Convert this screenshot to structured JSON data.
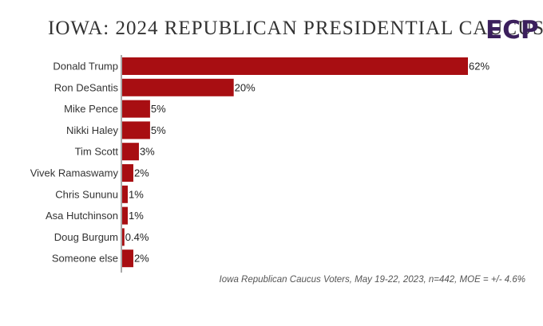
{
  "title": "IOWA: 2024 REPUBLICAN PRESIDENTIAL CAUCUS",
  "logo": {
    "text": "ECP",
    "icon": "ecp-logo-icon",
    "color": "#3b1f5c",
    "accent": "#7a4fa8"
  },
  "note": "Iowa Republican Caucus Voters, May 19-22, 2023, n=442, MOE = +/- 4.6%",
  "colors": {
    "bar": "#a80e12",
    "axis": "#555555",
    "label": "#333333"
  },
  "chart_data": {
    "type": "bar",
    "orientation": "horizontal",
    "categories": [
      "Donald Trump",
      "Ron DeSantis",
      "Mike Pence",
      "Nikki Haley",
      "Tim Scott",
      "Vivek Ramaswamy",
      "Chris Sununu",
      "Asa Hutchinson",
      "Doug Burgum",
      "Someone else"
    ],
    "values": [
      62,
      20,
      5,
      5,
      3,
      2,
      1,
      1,
      0.4,
      2
    ],
    "labels": [
      "62%",
      "20%",
      "5%",
      "5%",
      "3%",
      "2%",
      "1%",
      "1%",
      "0.4%",
      "2%"
    ],
    "xlim": [
      0,
      62
    ],
    "grid": false,
    "legend": "none",
    "title": "IOWA: 2024 REPUBLICAN PRESIDENTIAL CAUCUS",
    "xlabel": "",
    "ylabel": ""
  }
}
